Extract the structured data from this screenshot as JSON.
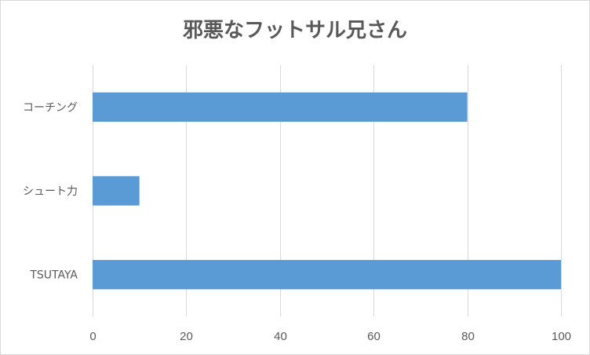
{
  "chart_data": {
    "type": "bar",
    "orientation": "horizontal",
    "title": "邪悪なフットサル兄さん",
    "categories": [
      "コーチング",
      "シュート力",
      "TSUTAYA"
    ],
    "values": [
      80,
      10,
      100
    ],
    "xlim": [
      0,
      100
    ],
    "xticks": [
      "0",
      "20",
      "40",
      "60",
      "80",
      "100"
    ],
    "grid": true,
    "legend": "none",
    "bar_color": "#5b9bd5"
  }
}
